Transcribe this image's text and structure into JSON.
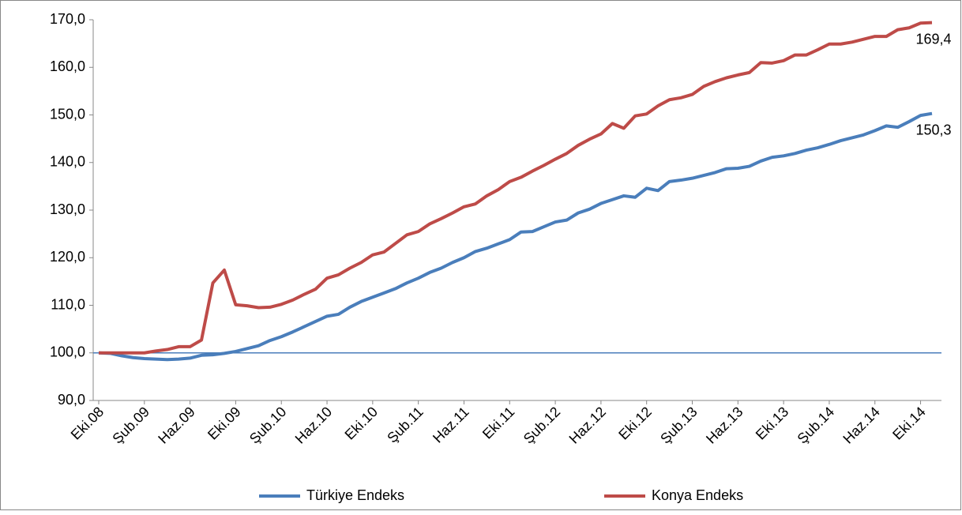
{
  "chart_data": {
    "type": "line",
    "categories": [
      "Eki.08",
      null,
      null,
      null,
      "Şub.09",
      null,
      null,
      null,
      "Haz.09",
      null,
      null,
      null,
      "Eki.09",
      null,
      null,
      null,
      "Şub.10",
      null,
      null,
      null,
      "Haz.10",
      null,
      null,
      null,
      "Eki.10",
      null,
      null,
      null,
      "Şub.11",
      null,
      null,
      null,
      "Haz.11",
      null,
      null,
      null,
      "Eki.11",
      null,
      null,
      null,
      "Şub.12",
      null,
      null,
      null,
      "Haz.12",
      null,
      null,
      null,
      "Eki.12",
      null,
      null,
      null,
      "Şub.13",
      null,
      null,
      null,
      "Haz.13",
      null,
      null,
      null,
      "Eki.13",
      null,
      null,
      null,
      "Şub.14",
      null,
      null,
      null,
      "Haz.14",
      null,
      null,
      null,
      "Eki.14",
      null
    ],
    "series": [
      {
        "name": "Türkiye Endeks",
        "color": "#4a7ebb",
        "values": [
          100,
          99.9,
          99.4,
          99.0,
          98.8,
          98.7,
          98.6,
          98.7,
          98.9,
          99.5,
          99.6,
          99.9,
          100.3,
          100.9,
          101.5,
          102.6,
          103.4,
          104.4,
          105.5,
          106.6,
          107.7,
          108.1,
          109.6,
          110.8,
          111.7,
          112.6,
          113.5,
          114.7,
          115.7,
          116.9,
          117.8,
          119.0,
          120.0,
          121.3,
          122.0,
          122.9,
          123.8,
          125.4,
          125.5,
          126.5,
          127.5,
          127.9,
          129.4,
          130.2,
          131.4,
          132.2,
          133.0,
          132.7,
          134.6,
          134.1,
          136.0,
          136.3,
          136.7,
          137.3,
          137.9,
          138.7,
          138.8,
          139.2,
          140.3,
          141.1,
          141.4,
          141.9,
          142.6,
          143.1,
          143.8,
          144.6,
          145.2,
          145.8,
          146.7,
          147.7,
          147.4,
          148.6,
          149.9,
          150.3
        ],
        "value_labels": [
          null,
          null,
          null,
          null,
          null,
          null,
          null,
          null,
          null,
          null,
          null,
          null,
          null,
          null,
          null,
          null,
          null,
          null,
          null,
          null,
          null,
          null,
          null,
          null,
          null,
          null,
          null,
          null,
          null,
          null,
          null,
          null,
          null,
          null,
          null,
          null,
          null,
          null,
          null,
          null,
          null,
          null,
          null,
          null,
          null,
          null,
          null,
          null,
          null,
          null,
          null,
          null,
          null,
          null,
          null,
          null,
          null,
          null,
          null,
          null,
          null,
          null,
          null,
          null,
          null,
          null,
          null,
          null,
          null,
          null,
          null,
          null,
          null,
          "150,3"
        ]
      },
      {
        "name": "Konya Endeks",
        "color": "#be4b48",
        "values": [
          100,
          100,
          100,
          100,
          100,
          100.4,
          100.7,
          101.3,
          101.3,
          102.7,
          114.7,
          117.4,
          110.1,
          109.9,
          109.5,
          109.6,
          110.2,
          111.1,
          112.3,
          113.4,
          115.7,
          116.4,
          117.8,
          119.0,
          120.6,
          121.2,
          123.0,
          124.8,
          125.5,
          127.1,
          128.2,
          129.4,
          130.7,
          131.3,
          133.0,
          134.3,
          136.0,
          136.9,
          138.2,
          139.4,
          140.7,
          141.9,
          143.6,
          144.9,
          146.0,
          148.2,
          147.2,
          149.8,
          150.2,
          151.9,
          153.2,
          153.6,
          154.3,
          156.0,
          157.0,
          157.8,
          158.4,
          158.9,
          161.0,
          160.9,
          161.4,
          162.6,
          162.6,
          163.7,
          164.9,
          164.9,
          165.3,
          165.9,
          166.5,
          166.5,
          167.9,
          168.3,
          169.3,
          169.4
        ],
        "value_labels": [
          null,
          null,
          null,
          null,
          null,
          null,
          null,
          null,
          null,
          null,
          null,
          null,
          null,
          null,
          null,
          null,
          null,
          null,
          null,
          null,
          null,
          null,
          null,
          null,
          null,
          null,
          null,
          null,
          null,
          null,
          null,
          null,
          null,
          null,
          null,
          null,
          null,
          null,
          null,
          null,
          null,
          null,
          null,
          null,
          null,
          null,
          null,
          null,
          null,
          null,
          null,
          null,
          null,
          null,
          null,
          null,
          null,
          null,
          null,
          null,
          null,
          null,
          null,
          null,
          null,
          null,
          null,
          null,
          null,
          null,
          null,
          null,
          null,
          "169,4"
        ]
      }
    ],
    "ylim": [
      90,
      170
    ],
    "yticks": [
      {
        "value": 90,
        "label": "90,0"
      },
      {
        "value": 100,
        "label": "100,0"
      },
      {
        "value": 110,
        "label": "110,0"
      },
      {
        "value": 120,
        "label": "120,0"
      },
      {
        "value": 130,
        "label": "130,0"
      },
      {
        "value": 140,
        "label": "140,0"
      },
      {
        "value": 150,
        "label": "150,0"
      },
      {
        "value": 160,
        "label": "160,0"
      },
      {
        "value": 170,
        "label": "170,0"
      }
    ],
    "axis_crossing": 100,
    "legend": "bottom"
  }
}
